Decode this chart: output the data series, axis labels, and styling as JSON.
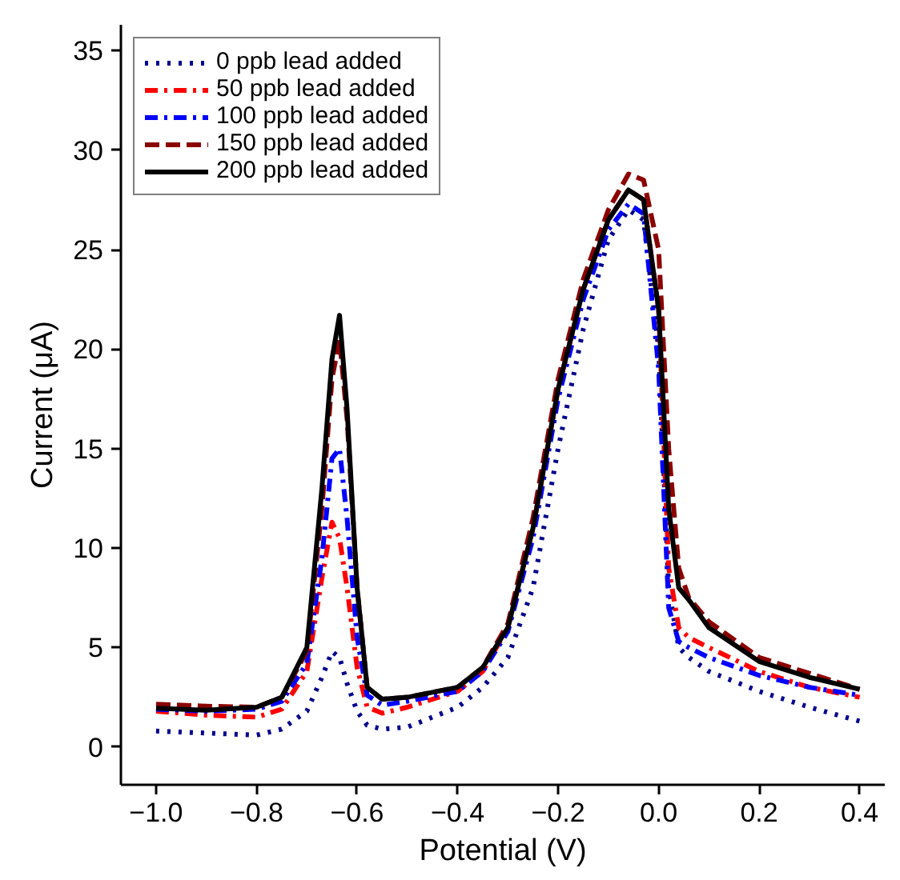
{
  "chart_data": {
    "type": "line",
    "xlabel": "Potential (V)",
    "ylabel": "Current (μA)",
    "x": [
      -1.0,
      -0.9,
      -0.8,
      -0.75,
      -0.7,
      -0.67,
      -0.65,
      -0.635,
      -0.62,
      -0.6,
      -0.58,
      -0.55,
      -0.5,
      -0.4,
      -0.35,
      -0.3,
      -0.25,
      -0.2,
      -0.15,
      -0.1,
      -0.06,
      -0.03,
      0.0,
      0.02,
      0.04,
      0.06,
      0.1,
      0.2,
      0.3,
      0.4
    ],
    "series": [
      {
        "name": "0 ppb lead added",
        "color": "#00008b",
        "line_style": "dotted",
        "values": [
          0.8,
          0.7,
          0.6,
          0.9,
          1.8,
          3.5,
          4.8,
          4.5,
          3.2,
          1.8,
          1.1,
          0.9,
          1.0,
          2.0,
          3.0,
          4.5,
          8,
          15,
          21,
          25.5,
          27.0,
          26.5,
          20,
          8,
          5,
          4.5,
          3.8,
          2.8,
          2.0,
          1.3
        ]
      },
      {
        "name": "50 ppb lead added",
        "color": "#ff0000",
        "line_style": "dashdot",
        "values": [
          1.8,
          1.6,
          1.5,
          1.9,
          3.8,
          8.5,
          11.3,
          10.5,
          8,
          4,
          2.0,
          1.7,
          2.0,
          2.8,
          3.8,
          6.0,
          11,
          18,
          23,
          26.5,
          28.0,
          27.5,
          22,
          9,
          6,
          5.5,
          5,
          3.8,
          3.0,
          2.5
        ]
      },
      {
        "name": "100 ppb lead added",
        "color": "#0000ff",
        "line_style": "dashdot",
        "values": [
          1.9,
          1.8,
          1.9,
          2.3,
          4.2,
          9.5,
          14.5,
          15,
          11.5,
          5.5,
          2.6,
          2.1,
          2.3,
          2.8,
          3.8,
          5.8,
          10.5,
          17.5,
          22.5,
          26,
          27.3,
          26.8,
          19,
          7,
          5.3,
          5,
          4.5,
          3.6,
          3.0,
          2.6
        ]
      },
      {
        "name": "150 ppb lead added",
        "color": "#8b0000",
        "line_style": "dashed",
        "values": [
          2.15,
          2.05,
          2.0,
          2.5,
          4.8,
          12,
          18.5,
          20.5,
          16.5,
          8,
          3,
          2.4,
          2.5,
          3.0,
          4.0,
          6.2,
          11.5,
          18.5,
          23.5,
          27,
          28.8,
          28.5,
          25,
          15,
          9,
          7.5,
          6.3,
          4.5,
          3.7,
          2.9
        ]
      },
      {
        "name": "200 ppb lead added",
        "color": "#000000",
        "line_style": "solid",
        "values": [
          1.95,
          1.85,
          2.0,
          2.5,
          5.0,
          13,
          19.5,
          21.7,
          17,
          8,
          3,
          2.4,
          2.5,
          3.0,
          4.0,
          6.0,
          11,
          18,
          23,
          26.5,
          28.0,
          27.5,
          22,
          12,
          8,
          7.4,
          6,
          4.3,
          3.5,
          2.9
        ]
      }
    ],
    "xlim": [
      -1.07,
      0.45
    ],
    "ylim": [
      -1.9,
      36.3
    ],
    "xticks": [
      {
        "value": -1.0,
        "label": "−1.0"
      },
      {
        "value": -0.8,
        "label": "−0.8"
      },
      {
        "value": -0.6,
        "label": "−0.6"
      },
      {
        "value": -0.4,
        "label": "−0.4"
      },
      {
        "value": -0.2,
        "label": "−0.2"
      },
      {
        "value": 0.0,
        "label": "0.0"
      },
      {
        "value": 0.2,
        "label": "0.2"
      },
      {
        "value": 0.4,
        "label": "0.4"
      }
    ],
    "yticks": [
      0,
      5,
      10,
      15,
      20,
      25,
      30,
      35
    ],
    "grid": false,
    "legend": "top left"
  }
}
